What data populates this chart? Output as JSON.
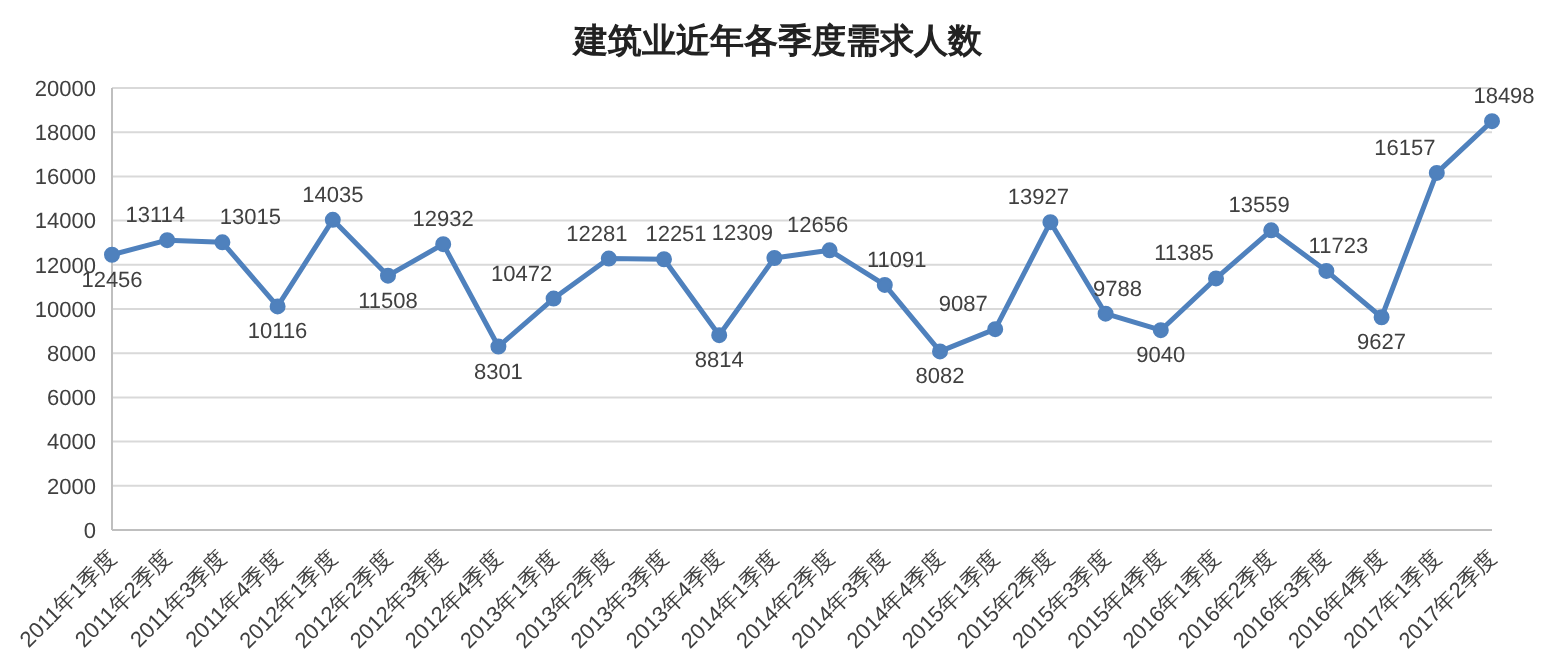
{
  "chart_data": {
    "type": "line",
    "title": "建筑业近年各季度需求人数",
    "categories": [
      "2011年1季度",
      "2011年2季度",
      "2011年3季度",
      "2011年4季度",
      "2012年1季度",
      "2012年2季度",
      "2012年3季度",
      "2012年4季度",
      "2013年1季度",
      "2013年2季度",
      "2013年3季度",
      "2013年4季度",
      "2014年1季度",
      "2014年2季度",
      "2014年3季度",
      "2014年4季度",
      "2015年1季度",
      "2015年2季度",
      "2015年3季度",
      "2015年4季度",
      "2016年1季度",
      "2016年2季度",
      "2016年3季度",
      "2016年4季度",
      "2017年1季度",
      "2017年2季度"
    ],
    "series": [
      {
        "color": "#4f81bd",
        "values": [
          12456,
          13114,
          13015,
          10116,
          14035,
          11508,
          12932,
          8301,
          10472,
          12281,
          12251,
          8814,
          12309,
          12656,
          11091,
          8082,
          9087,
          13927,
          9788,
          9040,
          11385,
          13559,
          11723,
          9627,
          16157,
          18498
        ]
      }
    ],
    "ylim": [
      0,
      20000
    ],
    "yticks": [
      0,
      2000,
      4000,
      6000,
      8000,
      10000,
      12000,
      14000,
      16000,
      18000,
      20000
    ],
    "grid": "y",
    "legend": false,
    "marker": "circle",
    "line_style": "solid",
    "data_labels": true
  }
}
